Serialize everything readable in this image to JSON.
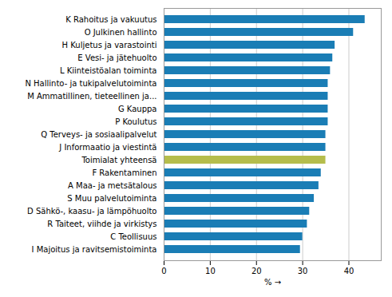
{
  "chart_data": {
    "type": "bar",
    "orientation": "horizontal",
    "categories": [
      "I Majoitus ja ravitsemistoiminta",
      "C Teollisuus",
      "R Taiteet, viihde ja virkistys",
      "D Sähkö-, kaasu- ja lämpöhuolto",
      "S Muu palvelutoiminta",
      "A Maa- ja metsätalous",
      "F Rakentaminen",
      "Toimialat yhteensä",
      "J Informaatio ja viestintä",
      "Q Terveys- ja sosiaalipalvelut",
      "P Koulutus",
      "G Kauppa",
      "M Ammatillinen, tieteellinen ja...",
      "N Hallinto- ja tukipalvelutoiminta",
      "L Kiinteistöalan toiminta",
      "E Vesi- ja jätehuolto",
      "H Kuljetus ja varastointi",
      "O Julkinen hallinto",
      "K Rahoitus ja vakuutus"
    ],
    "values": [
      29.5,
      30.0,
      31.0,
      31.5,
      32.5,
      33.5,
      34.0,
      35.0,
      35.0,
      35.0,
      35.5,
      35.5,
      35.5,
      35.5,
      36.0,
      36.5,
      37.0,
      41.0,
      43.5
    ],
    "colors": [
      "#1a7db5",
      "#1a7db5",
      "#1a7db5",
      "#1a7db5",
      "#1a7db5",
      "#1a7db5",
      "#1a7db5",
      "#b5bd4c",
      "#1a7db5",
      "#1a7db5",
      "#1a7db5",
      "#1a7db5",
      "#1a7db5",
      "#1a7db5",
      "#1a7db5",
      "#1a7db5",
      "#1a7db5",
      "#1a7db5",
      "#1a7db5"
    ],
    "xlabel": "%",
    "xlim": [
      0,
      47
    ],
    "xticks": [
      0,
      10,
      20,
      30,
      40
    ],
    "grid": true
  }
}
